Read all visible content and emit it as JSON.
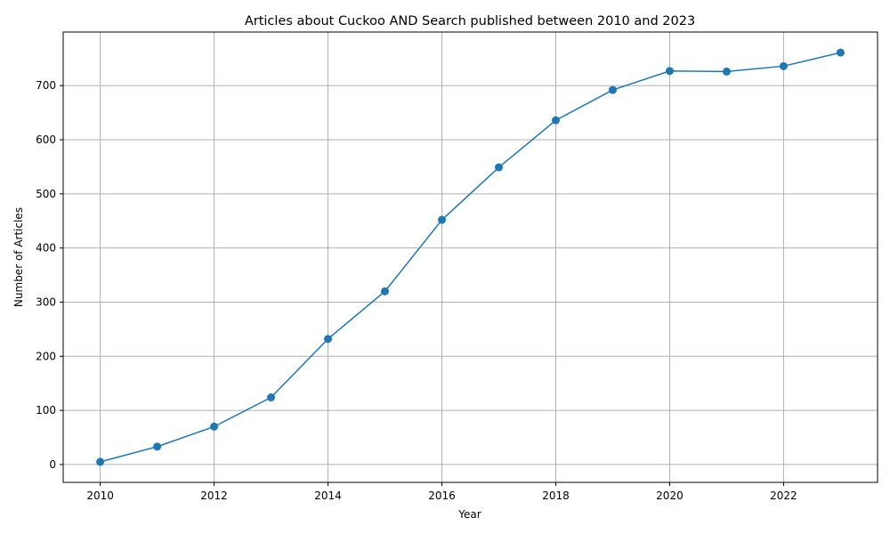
{
  "chart_data": {
    "type": "line",
    "title": "Articles about Cuckoo AND Search published between 2010 and 2023",
    "xlabel": "Year",
    "ylabel": "Number of Articles",
    "x": [
      2010,
      2011,
      2012,
      2013,
      2014,
      2015,
      2016,
      2017,
      2018,
      2019,
      2020,
      2021,
      2022,
      2023
    ],
    "series": [
      {
        "values": [
          5,
          33,
          70,
          124,
          232,
          320,
          452,
          549,
          636,
          692,
          727,
          726,
          736,
          761
        ],
        "color": "#1f77b4",
        "marker": "circle"
      }
    ],
    "xticks": [
      "2010",
      "2012",
      "2014",
      "2016",
      "2018",
      "2020",
      "2022"
    ],
    "yticks": [
      "0",
      "100",
      "200",
      "300",
      "400",
      "500",
      "600",
      "700"
    ],
    "xlim": [
      2009.35,
      2023.65
    ],
    "ylim": [
      -33,
      799
    ],
    "grid": true,
    "legend": "none"
  }
}
